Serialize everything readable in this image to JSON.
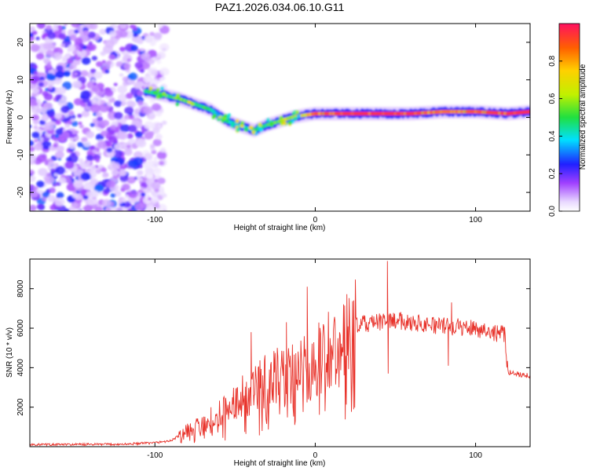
{
  "title": "PAZ1.2026.034.06.10.G11",
  "chart_data": [
    {
      "type": "heatmap",
      "name": "spectrogram",
      "xlabel": "Height of straight line (km)",
      "ylabel": "Frequency (Hz)",
      "xlim": [
        -178,
        134
      ],
      "ylim": [
        -25,
        25
      ],
      "xticks": [
        -100,
        0,
        100
      ],
      "yticks": [
        -20,
        -10,
        0,
        10,
        20
      ],
      "colorbar": {
        "label": "Normalized spectral amplitude",
        "range": [
          0.0,
          1.0
        ],
        "ticks": [
          0.0,
          0.2,
          0.4,
          0.6,
          0.8
        ]
      },
      "ridge": {
        "description": "dominant frequency vs height",
        "x": [
          -106,
          -95,
          -85,
          -75,
          -65,
          -55,
          -45,
          -38,
          -30,
          -22,
          -15,
          -8,
          0,
          20,
          40,
          60,
          80,
          100,
          120,
          134
        ],
        "y": [
          7,
          6,
          5,
          3.5,
          2,
          -1,
          -2.5,
          -3.5,
          -2,
          -1,
          0,
          0.5,
          1,
          1,
          1,
          1,
          1.5,
          1.5,
          1,
          1.5
        ],
        "amplitude": [
          0.5,
          0.5,
          0.6,
          0.55,
          0.5,
          0.45,
          0.4,
          0.45,
          0.5,
          0.6,
          0.7,
          0.8,
          0.9,
          0.95,
          0.95,
          0.95,
          0.85,
          0.9,
          0.95,
          0.95
        ]
      },
      "noise_region": {
        "x_range": [
          -178,
          -106
        ],
        "amplitude": [
          0.05,
          0.3
        ]
      }
    },
    {
      "type": "line",
      "name": "snr",
      "xlabel": "Height of straight line (km)",
      "ylabel": "SNR (10 * v/v)",
      "xlim": [
        -178,
        134
      ],
      "ylim": [
        0,
        9500
      ],
      "xticks": [
        -100,
        0,
        100
      ],
      "yticks": [
        2000,
        4000,
        6000,
        8000
      ],
      "color": "#e8322a",
      "envelope": {
        "x": [
          -178,
          -120,
          -100,
          -90,
          -80,
          -70,
          -60,
          -50,
          -40,
          -30,
          -20,
          -10,
          0,
          10,
          20,
          25,
          30,
          40,
          50,
          60,
          80,
          100,
          110,
          118,
          120,
          125,
          134
        ],
        "y": [
          100,
          120,
          200,
          300,
          800,
          1200,
          1600,
          2200,
          2900,
          3300,
          3600,
          3800,
          4200,
          5000,
          5600,
          6100,
          6200,
          6300,
          6400,
          6300,
          6100,
          6000,
          5800,
          5700,
          3800,
          3700,
          3600
        ]
      },
      "spikes": [
        {
          "x": -65,
          "y": 2000
        },
        {
          "x": -40,
          "y": 5800
        },
        {
          "x": -18,
          "y": 6300
        },
        {
          "x": -5,
          "y": 8100
        },
        {
          "x": 24,
          "y": 7400
        },
        {
          "x": 45,
          "y": 9400
        },
        {
          "x": 45.5,
          "y": 3700
        },
        {
          "x": 85,
          "y": 7300
        },
        {
          "x": 83,
          "y": 4100
        }
      ]
    }
  ]
}
